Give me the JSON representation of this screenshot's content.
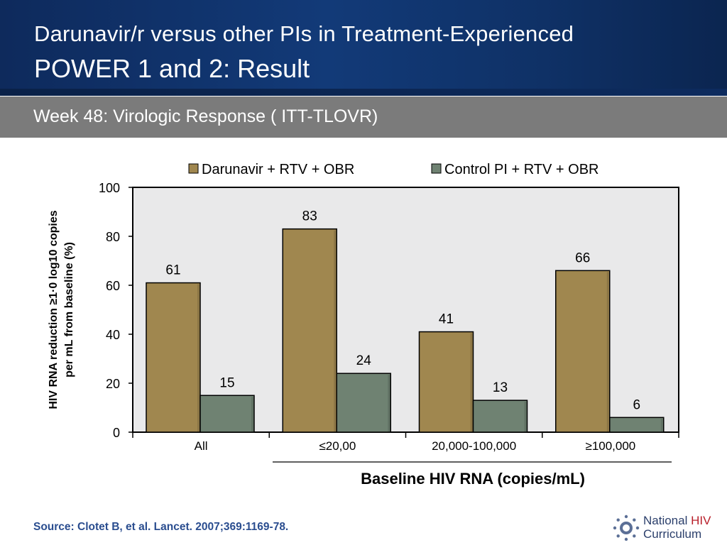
{
  "slide": {
    "title_line1": "Darunavir/r versus other PIs in Treatment-Experienced",
    "title_line2": "POWER 1 and 2: Result",
    "subtitle": "Week 48: Virologic Response ( ITT-TLOVR)",
    "source": "Source: Clotet B, et al. Lancet. 2007;369:1169-78."
  },
  "logo": {
    "word1": "National",
    "word2": "HIV",
    "word3": "Curriculum",
    "icon": "seal-icon"
  },
  "chart_data": {
    "type": "bar",
    "categories": [
      "All",
      "≤20,00",
      "20,000-100,000",
      "≥100,000"
    ],
    "series": [
      {
        "name": "Darunavir + RTV + OBR",
        "values": [
          61,
          83,
          41,
          66
        ],
        "color": "#a0874f"
      },
      {
        "name": "Control PI + RTV + OBR",
        "values": [
          15,
          24,
          13,
          6
        ],
        "color": "#6f8272"
      }
    ],
    "ylabel_line1": "HIV RNA reduction ≥1·0 log10 copies",
    "ylabel_line2": "per mL from baseline (%)",
    "xlabel": "Baseline HIV RNA (copies/mL)",
    "ylim": [
      0,
      100
    ],
    "yticks": [
      0,
      20,
      40,
      60,
      80,
      100
    ],
    "legend_position": "top",
    "plot_background": "#e9e9ea",
    "grid": false
  }
}
